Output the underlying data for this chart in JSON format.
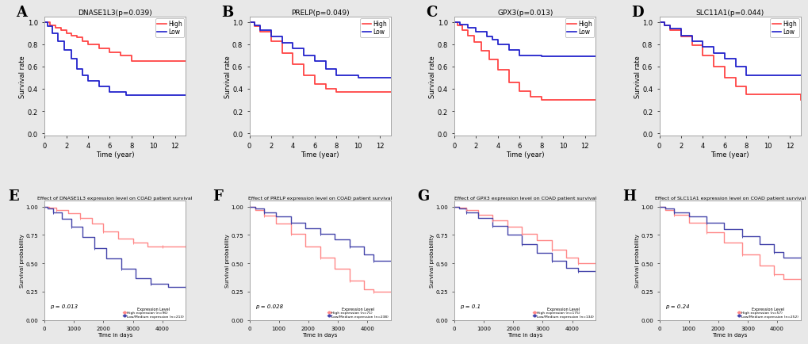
{
  "panels": [
    {
      "label": "A",
      "title": "DNASE1L3(p=0.039)",
      "high_color": "#FF4444",
      "low_color": "#2222CC",
      "xlabel": "Time (year)",
      "ylabel": "Survival rate",
      "xlim": [
        0,
        13
      ],
      "ylim": [
        -0.02,
        1.05
      ],
      "xticks": [
        0,
        2,
        4,
        6,
        8,
        10,
        12
      ],
      "yticks": [
        0.0,
        0.2,
        0.4,
        0.6,
        0.8,
        1.0
      ],
      "high_steps_x": [
        0,
        0.5,
        1.0,
        1.5,
        2.0,
        2.5,
        3.0,
        3.5,
        4.0,
        5.0,
        6.0,
        7.0,
        8.0,
        10.5,
        13
      ],
      "high_steps_y": [
        1.0,
        0.97,
        0.95,
        0.93,
        0.9,
        0.88,
        0.86,
        0.83,
        0.8,
        0.76,
        0.73,
        0.7,
        0.65,
        0.65,
        0.65
      ],
      "low_steps_x": [
        0,
        0.3,
        0.7,
        1.2,
        1.8,
        2.5,
        3.0,
        3.5,
        4.0,
        5.0,
        6.0,
        7.5,
        9.5,
        13
      ],
      "low_steps_y": [
        1.0,
        0.96,
        0.9,
        0.83,
        0.75,
        0.67,
        0.58,
        0.52,
        0.47,
        0.42,
        0.37,
        0.34,
        0.34,
        0.34
      ]
    },
    {
      "label": "B",
      "title": "PRELP(p=0.049)",
      "high_color": "#FF4444",
      "low_color": "#2222CC",
      "xlabel": "Time (year)",
      "ylabel": "Survival rate",
      "xlim": [
        0,
        13
      ],
      "ylim": [
        -0.02,
        1.05
      ],
      "xticks": [
        0,
        2,
        4,
        6,
        8,
        10,
        12
      ],
      "yticks": [
        0.0,
        0.2,
        0.4,
        0.6,
        0.8,
        1.0
      ],
      "high_steps_x": [
        0,
        0.5,
        1.0,
        2.0,
        3.0,
        4.0,
        5.0,
        6.0,
        7.0,
        8.0,
        13
      ],
      "high_steps_y": [
        1.0,
        0.96,
        0.91,
        0.83,
        0.72,
        0.62,
        0.52,
        0.44,
        0.4,
        0.37,
        0.37
      ],
      "low_steps_x": [
        0,
        0.5,
        1.0,
        2.0,
        3.0,
        4.0,
        5.0,
        6.0,
        7.0,
        8.0,
        10.0,
        13
      ],
      "low_steps_y": [
        1.0,
        0.97,
        0.93,
        0.87,
        0.81,
        0.76,
        0.7,
        0.65,
        0.58,
        0.52,
        0.5,
        0.5
      ]
    },
    {
      "label": "C",
      "title": "GPX3(p=0.013)",
      "high_color": "#FF4444",
      "low_color": "#2222CC",
      "xlabel": "Time (year)",
      "ylabel": "Survival rate",
      "xlim": [
        0,
        13
      ],
      "ylim": [
        -0.02,
        1.05
      ],
      "xticks": [
        0,
        2,
        4,
        6,
        8,
        10,
        12
      ],
      "yticks": [
        0.0,
        0.2,
        0.4,
        0.6,
        0.8,
        1.0
      ],
      "high_steps_x": [
        0,
        0.3,
        0.7,
        1.2,
        1.8,
        2.5,
        3.2,
        4.0,
        5.0,
        6.0,
        7.0,
        8.0,
        13
      ],
      "high_steps_y": [
        1.0,
        0.97,
        0.93,
        0.88,
        0.82,
        0.74,
        0.66,
        0.57,
        0.46,
        0.38,
        0.33,
        0.3,
        0.3
      ],
      "low_steps_x": [
        0,
        0.5,
        1.2,
        2.0,
        3.0,
        3.5,
        4.0,
        5.0,
        6.0,
        8.0,
        13
      ],
      "low_steps_y": [
        1.0,
        0.98,
        0.95,
        0.91,
        0.87,
        0.84,
        0.8,
        0.75,
        0.7,
        0.69,
        0.69
      ]
    },
    {
      "label": "D",
      "title": "SLC11A1(p=0.044)",
      "high_color": "#FF4444",
      "low_color": "#2222CC",
      "xlabel": "Time (year)",
      "ylabel": "Survival rate",
      "xlim": [
        0,
        13
      ],
      "ylim": [
        -0.02,
        1.05
      ],
      "xticks": [
        0,
        2,
        4,
        6,
        8,
        10,
        12
      ],
      "yticks": [
        0.0,
        0.2,
        0.4,
        0.6,
        0.8,
        1.0
      ],
      "high_steps_x": [
        0,
        0.5,
        1.0,
        2.0,
        3.0,
        4.0,
        5.0,
        6.0,
        7.0,
        8.0,
        13
      ],
      "high_steps_y": [
        1.0,
        0.97,
        0.93,
        0.87,
        0.79,
        0.7,
        0.6,
        0.5,
        0.42,
        0.35,
        0.3
      ],
      "low_steps_x": [
        0,
        0.5,
        1.0,
        2.0,
        3.0,
        4.0,
        5.0,
        6.0,
        7.0,
        8.0,
        13
      ],
      "low_steps_y": [
        1.0,
        0.97,
        0.94,
        0.88,
        0.83,
        0.78,
        0.72,
        0.67,
        0.6,
        0.52,
        0.52
      ]
    },
    {
      "label": "E",
      "title": "Effect of DNASE1L3 expression level on COAD patient survival",
      "high_color": "#FF8888",
      "low_color": "#4444AA",
      "xlabel": "Time in days",
      "ylabel": "Survival probability",
      "xlim": [
        0,
        4800
      ],
      "ylim": [
        0.0,
        1.05
      ],
      "xticks": [
        0,
        1000,
        2000,
        3000,
        4000
      ],
      "yticks": [
        0.0,
        0.25,
        0.5,
        0.75,
        1.0
      ],
      "pvalue": "p = 0.013",
      "legend_high": "High expression (n=96)",
      "legend_low": "Low/Medium expression (n=213)",
      "high_steps_x": [
        0,
        150,
        400,
        800,
        1200,
        1600,
        2000,
        2500,
        3000,
        3500,
        4000,
        4500,
        4800
      ],
      "high_steps_y": [
        1.0,
        0.99,
        0.97,
        0.94,
        0.9,
        0.85,
        0.78,
        0.72,
        0.68,
        0.65,
        0.65,
        0.65,
        0.65
      ],
      "low_steps_x": [
        0,
        100,
        300,
        600,
        900,
        1300,
        1700,
        2100,
        2600,
        3100,
        3600,
        4200,
        4800
      ],
      "low_steps_y": [
        1.0,
        0.98,
        0.95,
        0.89,
        0.82,
        0.73,
        0.63,
        0.54,
        0.45,
        0.37,
        0.32,
        0.29,
        0.29
      ]
    },
    {
      "label": "F",
      "title": "Effect of PRELP expression level on COAD patient survival",
      "high_color": "#FF8888",
      "low_color": "#4444AA",
      "xlabel": "Time in days",
      "ylabel": "Survival probability",
      "xlim": [
        0,
        4800
      ],
      "ylim": [
        0.0,
        1.05
      ],
      "xticks": [
        0,
        1000,
        2000,
        3000,
        4000
      ],
      "yticks": [
        0.0,
        0.25,
        0.5,
        0.75,
        1.0
      ],
      "pvalue": "p = 0.028",
      "legend_high": "High expression (n=71)",
      "legend_low": "Low/Medium expression (n=238)",
      "high_steps_x": [
        0,
        200,
        500,
        900,
        1400,
        1900,
        2400,
        2900,
        3400,
        3900,
        4200,
        4800
      ],
      "high_steps_y": [
        1.0,
        0.97,
        0.92,
        0.85,
        0.76,
        0.65,
        0.55,
        0.45,
        0.35,
        0.27,
        0.25,
        0.25
      ],
      "low_steps_x": [
        0,
        200,
        500,
        900,
        1400,
        1900,
        2400,
        2900,
        3400,
        3900,
        4200,
        4800
      ],
      "low_steps_y": [
        1.0,
        0.98,
        0.95,
        0.91,
        0.86,
        0.81,
        0.76,
        0.71,
        0.65,
        0.58,
        0.52,
        0.52
      ]
    },
    {
      "label": "G",
      "title": "Effect of GPX3 expression level on COAD patient survival",
      "high_color": "#FF8888",
      "low_color": "#4444AA",
      "xlabel": "Time in days",
      "ylabel": "Survival probability",
      "xlim": [
        0,
        4800
      ],
      "ylim": [
        0.0,
        1.05
      ],
      "xticks": [
        0,
        1000,
        2000,
        3000,
        4000
      ],
      "yticks": [
        0.0,
        0.25,
        0.5,
        0.75,
        1.0
      ],
      "pvalue": "p = 0.1",
      "legend_high": "High expression (n=175)",
      "legend_low": "Low/Medium expression (n=134)",
      "high_steps_x": [
        0,
        150,
        400,
        800,
        1300,
        1800,
        2300,
        2800,
        3300,
        3800,
        4200,
        4800
      ],
      "high_steps_y": [
        1.0,
        0.99,
        0.97,
        0.93,
        0.88,
        0.82,
        0.76,
        0.7,
        0.62,
        0.55,
        0.5,
        0.5
      ],
      "low_steps_x": [
        0,
        150,
        400,
        800,
        1300,
        1800,
        2300,
        2800,
        3300,
        3800,
        4200,
        4800
      ],
      "low_steps_y": [
        1.0,
        0.98,
        0.95,
        0.9,
        0.83,
        0.75,
        0.67,
        0.59,
        0.52,
        0.46,
        0.43,
        0.43
      ]
    },
    {
      "label": "H",
      "title": "Effect of SLC11A1 expression level on COAD patient survival",
      "high_color": "#FF8888",
      "low_color": "#4444AA",
      "xlabel": "Time in days",
      "ylabel": "Survival probability",
      "xlim": [
        0,
        4800
      ],
      "ylim": [
        0.0,
        1.05
      ],
      "xticks": [
        0,
        1000,
        2000,
        3000,
        4000
      ],
      "yticks": [
        0.0,
        0.25,
        0.5,
        0.75,
        1.0
      ],
      "pvalue": "p = 0.24",
      "legend_high": "High expression (n=57)",
      "legend_low": "Low/Medium expression (n=252)",
      "high_steps_x": [
        0,
        200,
        500,
        1000,
        1600,
        2200,
        2800,
        3400,
        3900,
        4200,
        4800
      ],
      "high_steps_y": [
        1.0,
        0.97,
        0.93,
        0.86,
        0.77,
        0.68,
        0.58,
        0.48,
        0.4,
        0.36,
        0.36
      ],
      "low_steps_x": [
        0,
        200,
        500,
        1000,
        1600,
        2200,
        2800,
        3400,
        3900,
        4200,
        4800
      ],
      "low_steps_y": [
        1.0,
        0.98,
        0.95,
        0.91,
        0.86,
        0.8,
        0.74,
        0.67,
        0.6,
        0.55,
        0.55
      ]
    }
  ],
  "fig_bg": "#e8e8e8",
  "panel_bg": "#ffffff"
}
